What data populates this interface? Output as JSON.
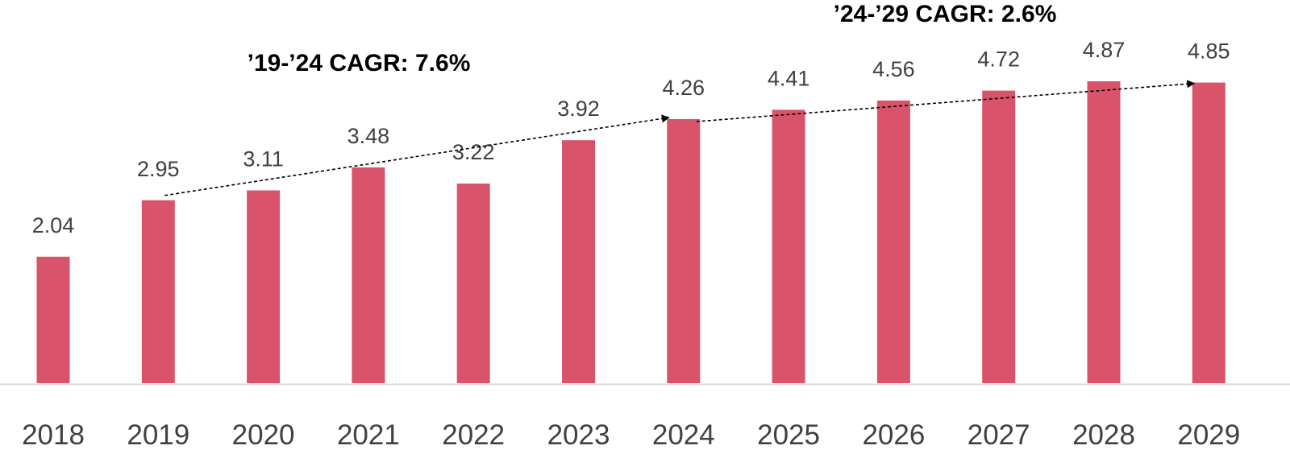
{
  "chart_data": {
    "type": "bar",
    "categories": [
      "2018",
      "2019",
      "2020",
      "2021",
      "2022",
      "2023",
      "2024",
      "2025",
      "2026",
      "2027",
      "2028",
      "2029"
    ],
    "values": [
      2.04,
      2.95,
      3.11,
      3.48,
      3.22,
      3.92,
      4.26,
      4.41,
      4.56,
      4.72,
      4.87,
      4.85
    ],
    "data_labels": [
      "2.04",
      "2.95",
      "3.11",
      "3.48",
      "3.22",
      "3.92",
      "4.26",
      "4.41",
      "4.56",
      "4.72",
      "4.87",
      "4.85"
    ],
    "title": "",
    "xlabel": "",
    "ylabel": "",
    "ylim": [
      0,
      5.8
    ],
    "grid": false,
    "legend": "none",
    "bar_color": "#D9536B",
    "axis_color": "#D9D9D9",
    "annotations": [
      {
        "label": "’19-’24 CAGR: 7.6%",
        "from": "2019",
        "to": "2024"
      },
      {
        "label": "’24-’29 CAGR: 2.6%",
        "from": "2024",
        "to": "2029"
      }
    ]
  }
}
